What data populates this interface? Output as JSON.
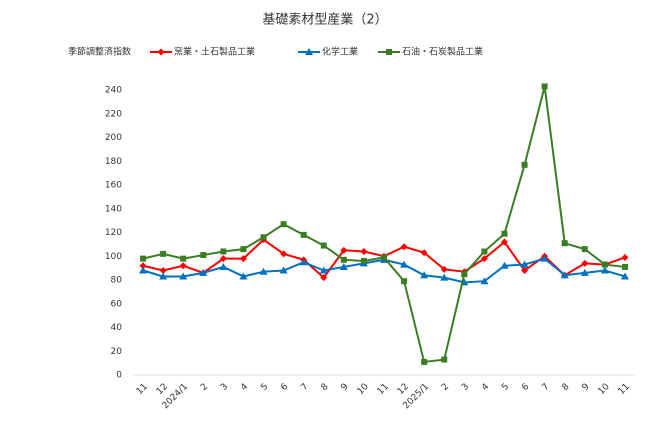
{
  "chart_data": {
    "type": "line",
    "title": "基礎素材型産業（2）",
    "ylabel": "季節調整済指数",
    "categories": [
      "11",
      "12",
      "2024/1",
      "2",
      "3",
      "4",
      "5",
      "6",
      "7",
      "8",
      "9",
      "10",
      "11",
      "12",
      "2025/1",
      "2",
      "3",
      "4",
      "5",
      "6",
      "7",
      "8",
      "9",
      "10",
      "11"
    ],
    "series": [
      {
        "name": "窯業・土石製品工業",
        "color": "#ff0000",
        "marker": "diamond",
        "values": [
          92,
          88,
          92,
          86,
          98,
          98,
          114,
          102,
          97,
          82,
          105,
          104,
          100,
          108,
          103,
          89,
          87,
          98,
          112,
          88,
          100,
          84,
          94,
          93,
          99
        ]
      },
      {
        "name": "化学工業",
        "color": "#0070c0",
        "marker": "triangle",
        "values": [
          88,
          83,
          83,
          86,
          91,
          83,
          87,
          88,
          95,
          88,
          91,
          94,
          97,
          93,
          84,
          82,
          78,
          79,
          92,
          93,
          98,
          84,
          86,
          88,
          83
        ]
      },
      {
        "name": "石油・石炭製品工業",
        "color": "#3a7d22",
        "marker": "square",
        "values": [
          98,
          102,
          98,
          101,
          104,
          106,
          116,
          127,
          118,
          109,
          97,
          96,
          99,
          79,
          11,
          13,
          85,
          104,
          119,
          177,
          243,
          111,
          106,
          93,
          91
        ]
      }
    ],
    "ylim": [
      0,
      240
    ],
    "yticks": [
      0,
      20,
      40,
      60,
      80,
      100,
      120,
      140,
      160,
      180,
      200,
      220,
      240
    ],
    "grid": false
  }
}
